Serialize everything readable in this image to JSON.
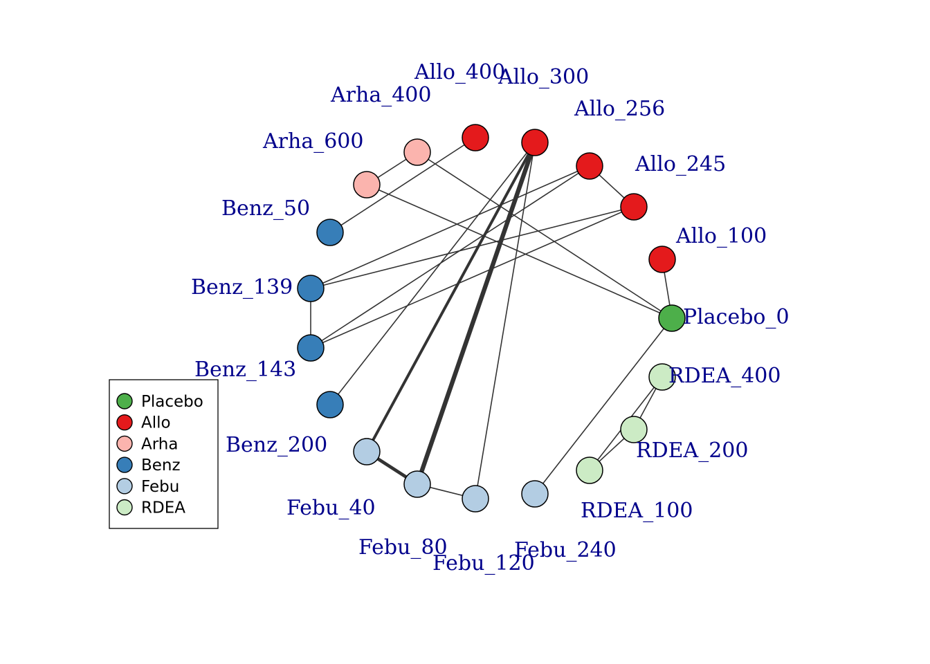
{
  "colors": {
    "Placebo": "#4daf4a",
    "Allo": "#e41a1c",
    "Arha": "#fbb4ae",
    "Benz": "#377eb8",
    "Febu": "#b3cde3",
    "RDEA": "#ccebc5",
    "label": "#00008b",
    "edge": "#333333"
  },
  "nodes": [
    {
      "id": "Placebo_0",
      "label": "Placebo_0",
      "group": "Placebo"
    },
    {
      "id": "Allo_100",
      "label": "Allo_100",
      "group": "Allo"
    },
    {
      "id": "Allo_245",
      "label": "Allo_245",
      "group": "Allo"
    },
    {
      "id": "Allo_256",
      "label": "Allo_256",
      "group": "Allo"
    },
    {
      "id": "Allo_300",
      "label": "Allo_300",
      "group": "Allo"
    },
    {
      "id": "Allo_400",
      "label": "Allo_400",
      "group": "Allo"
    },
    {
      "id": "Arha_400",
      "label": "Arha_400",
      "group": "Arha"
    },
    {
      "id": "Arha_600",
      "label": "Arha_600",
      "group": "Arha"
    },
    {
      "id": "Benz_50",
      "label": "Benz_50",
      "group": "Benz"
    },
    {
      "id": "Benz_139",
      "label": "Benz_139",
      "group": "Benz"
    },
    {
      "id": "Benz_143",
      "label": "Benz_143",
      "group": "Benz"
    },
    {
      "id": "Benz_200",
      "label": "Benz_200",
      "group": "Benz"
    },
    {
      "id": "Febu_40",
      "label": "Febu_40",
      "group": "Febu"
    },
    {
      "id": "Febu_80",
      "label": "Febu_80",
      "group": "Febu"
    },
    {
      "id": "Febu_120",
      "label": "Febu_120",
      "group": "Febu"
    },
    {
      "id": "Febu_240",
      "label": "Febu_240",
      "group": "Febu"
    },
    {
      "id": "RDEA_100",
      "label": "RDEA_100",
      "group": "RDEA"
    },
    {
      "id": "RDEA_200",
      "label": "RDEA_200",
      "group": "RDEA"
    },
    {
      "id": "RDEA_400",
      "label": "RDEA_400",
      "group": "RDEA"
    }
  ],
  "edges": [
    {
      "from": "Allo_100",
      "to": "Placebo_0",
      "weight": 1
    },
    {
      "from": "Arha_400",
      "to": "Placebo_0",
      "weight": 1
    },
    {
      "from": "Arha_600",
      "to": "Placebo_0",
      "weight": 1
    },
    {
      "from": "Febu_240",
      "to": "Placebo_0",
      "weight": 1
    },
    {
      "from": "Arha_400",
      "to": "Arha_600",
      "weight": 1
    },
    {
      "from": "Allo_400",
      "to": "Benz_50",
      "weight": 1
    },
    {
      "from": "Allo_256",
      "to": "Allo_245",
      "weight": 1
    },
    {
      "from": "Allo_256",
      "to": "Benz_139",
      "weight": 1
    },
    {
      "from": "Allo_256",
      "to": "Benz_143",
      "weight": 1
    },
    {
      "from": "Allo_245",
      "to": "Benz_139",
      "weight": 1
    },
    {
      "from": "Allo_245",
      "to": "Benz_143",
      "weight": 1
    },
    {
      "from": "Benz_139",
      "to": "Benz_143",
      "weight": 1
    },
    {
      "from": "Allo_300",
      "to": "Benz_200",
      "weight": 1
    },
    {
      "from": "Allo_300",
      "to": "Febu_40",
      "weight": 2.5
    },
    {
      "from": "Allo_300",
      "to": "Febu_80",
      "weight": 4
    },
    {
      "from": "Allo_300",
      "to": "Febu_120",
      "weight": 1
    },
    {
      "from": "Febu_40",
      "to": "Febu_80",
      "weight": 3
    },
    {
      "from": "Febu_80",
      "to": "Febu_120",
      "weight": 1
    },
    {
      "from": "RDEA_400",
      "to": "RDEA_200",
      "weight": 1
    },
    {
      "from": "RDEA_400",
      "to": "RDEA_100",
      "weight": 1
    },
    {
      "from": "RDEA_200",
      "to": "RDEA_100",
      "weight": 1
    }
  ],
  "legend": [
    {
      "label": "Placebo",
      "group": "Placebo"
    },
    {
      "label": "Allo",
      "group": "Allo"
    },
    {
      "label": "Arha",
      "group": "Arha"
    },
    {
      "label": "Benz",
      "group": "Benz"
    },
    {
      "label": "Febu",
      "group": "Febu"
    },
    {
      "label": "RDEA",
      "group": "RDEA"
    }
  ]
}
